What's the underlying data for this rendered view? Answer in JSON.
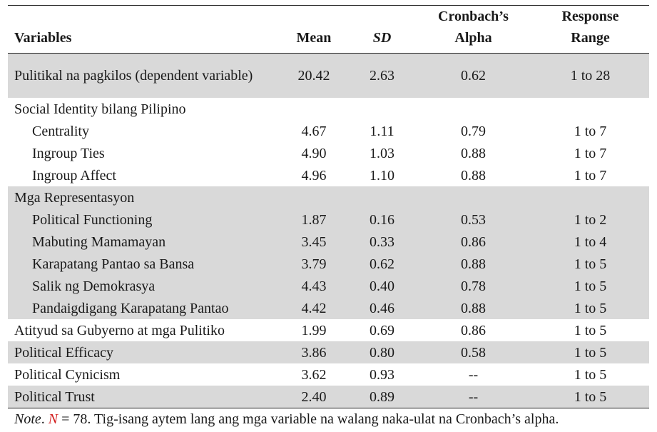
{
  "table": {
    "headers": {
      "variables": "Variables",
      "mean": "Mean",
      "sd": "SD",
      "alpha_line1": "Cronbach’s",
      "alpha_line2": "Alpha",
      "range_line1": "Response",
      "range_line2": "Range"
    },
    "rows": [
      {
        "label": "Pulitikal na pagkilos (dependent variable)",
        "mean": "20.42",
        "sd": "2.63",
        "alpha": "0.62",
        "range": "1 to 28"
      },
      {
        "label": "Social Identity bilang Pilipino",
        "mean": "",
        "sd": "",
        "alpha": "",
        "range": ""
      },
      {
        "label": "Centrality",
        "mean": "4.67",
        "sd": "1.11",
        "alpha": "0.79",
        "range": "1 to 7"
      },
      {
        "label": "Ingroup Ties",
        "mean": "4.90",
        "sd": "1.03",
        "alpha": "0.88",
        "range": "1 to 7"
      },
      {
        "label": "Ingroup Affect",
        "mean": "4.96",
        "sd": "1.10",
        "alpha": "0.88",
        "range": "1 to 7"
      },
      {
        "label": "Mga Representasyon",
        "mean": "",
        "sd": "",
        "alpha": "",
        "range": ""
      },
      {
        "label": "Political Functioning",
        "mean": "1.87",
        "sd": "0.16",
        "alpha": "0.53",
        "range": "1 to 2"
      },
      {
        "label": "Mabuting Mamamayan",
        "mean": "3.45",
        "sd": "0.33",
        "alpha": "0.86",
        "range": "1 to 4"
      },
      {
        "label": "Karapatang Pantao sa Bansa",
        "mean": "3.79",
        "sd": "0.62",
        "alpha": "0.88",
        "range": "1 to 5"
      },
      {
        "label": "Salik ng Demokrasya",
        "mean": "4.43",
        "sd": "0.40",
        "alpha": "0.78",
        "range": "1 to 5"
      },
      {
        "label": "Pandaigdigang Karapatang Pantao",
        "mean": "4.42",
        "sd": "0.46",
        "alpha": "0.88",
        "range": "1 to 5"
      },
      {
        "label": "Atityud sa Gubyerno at mga Pulitiko",
        "mean": "1.99",
        "sd": "0.69",
        "alpha": "0.86",
        "range": "1 to 5"
      },
      {
        "label": "Political Efficacy",
        "mean": "3.86",
        "sd": "0.80",
        "alpha": "0.58",
        "range": "1 to 5"
      },
      {
        "label": "Political Cynicism",
        "mean": "3.62",
        "sd": "0.93",
        "alpha": "--",
        "range": "1 to 5"
      },
      {
        "label": "Political Trust",
        "mean": "2.40",
        "sd": "0.89",
        "alpha": "--",
        "range": "1 to 5"
      }
    ]
  },
  "note": {
    "label": "Note",
    "after_label": ". ",
    "n_symbol": "N",
    "text": " = 78. Tig-isang aytem lang ang mga variable na walang naka-ulat na Cronbach’s alpha."
  }
}
